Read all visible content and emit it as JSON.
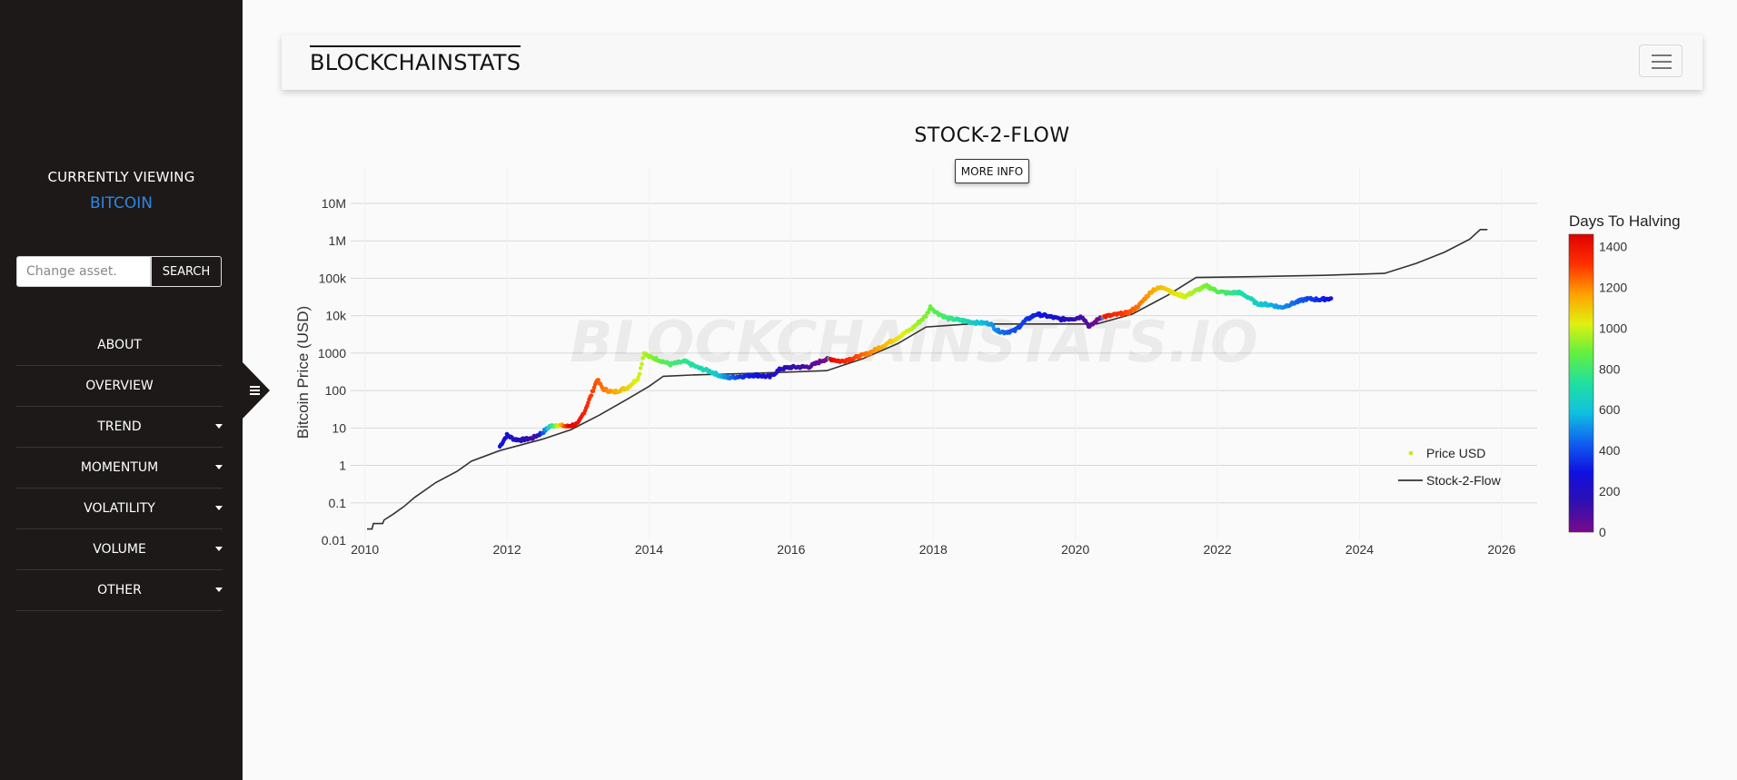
{
  "sidebar": {
    "currently_viewing_label": "CURRENTLY VIEWING",
    "asset": "BITCOIN",
    "search": {
      "placeholder": "Change asset.",
      "button_label": "SEARCH"
    },
    "nav": [
      {
        "label": "ABOUT",
        "dropdown": false
      },
      {
        "label": "OVERVIEW",
        "dropdown": false
      },
      {
        "label": "TREND",
        "dropdown": true
      },
      {
        "label": "MOMENTUM",
        "dropdown": true
      },
      {
        "label": "VOLATILITY",
        "dropdown": true
      },
      {
        "label": "VOLUME",
        "dropdown": true
      },
      {
        "label": "OTHER",
        "dropdown": true
      }
    ]
  },
  "header": {
    "brand": "BLOCKCHAINSTATS"
  },
  "page": {
    "title": "STOCK-2-FLOW",
    "more_info_label": "MORE INFO"
  },
  "chart_data": {
    "type": "scatter",
    "ylabel": "Bitcoin Price (USD)",
    "y_scale": "log",
    "ylim": [
      0.01,
      10000000
    ],
    "y_ticks": [
      {
        "value": 0.01,
        "label": "0.01"
      },
      {
        "value": 0.1,
        "label": "0.1"
      },
      {
        "value": 1,
        "label": "1"
      },
      {
        "value": 10,
        "label": "10"
      },
      {
        "value": 100,
        "label": "100"
      },
      {
        "value": 1000,
        "label": "1000"
      },
      {
        "value": 10000,
        "label": "10k"
      },
      {
        "value": 100000,
        "label": "100k"
      },
      {
        "value": 1000000,
        "label": "1M"
      },
      {
        "value": 10000000,
        "label": "10M"
      }
    ],
    "xlim": [
      2009.8,
      2026.5
    ],
    "x_ticks": [
      "2010",
      "2012",
      "2014",
      "2016",
      "2018",
      "2020",
      "2022",
      "2024",
      "2026"
    ],
    "grid": true,
    "watermark": "BLOCKCHAINSTATS.IO",
    "legend_position": "bottom-right",
    "series": [
      {
        "name": "Price USD",
        "kind": "markers",
        "legend_color": "#c8e82c",
        "points": [
          [
            2011.9,
            3.2
          ],
          [
            2012.0,
            6.5
          ],
          [
            2012.1,
            5.0
          ],
          [
            2012.2,
            4.8
          ],
          [
            2012.35,
            5.3
          ],
          [
            2012.5,
            7.5
          ],
          [
            2012.6,
            11
          ],
          [
            2012.7,
            12
          ],
          [
            2012.85,
            11
          ],
          [
            2013.0,
            13
          ],
          [
            2013.1,
            30
          ],
          [
            2013.2,
            90
          ],
          [
            2013.27,
            200
          ],
          [
            2013.35,
            110
          ],
          [
            2013.5,
            90
          ],
          [
            2013.7,
            120
          ],
          [
            2013.85,
            220
          ],
          [
            2013.93,
            1000
          ],
          [
            2014.0,
            800
          ],
          [
            2014.1,
            700
          ],
          [
            2014.3,
            500
          ],
          [
            2014.5,
            600
          ],
          [
            2014.7,
            400
          ],
          [
            2014.85,
            330
          ],
          [
            2015.0,
            250
          ],
          [
            2015.1,
            220
          ],
          [
            2015.3,
            240
          ],
          [
            2015.5,
            260
          ],
          [
            2015.7,
            230
          ],
          [
            2015.85,
            380
          ],
          [
            2016.0,
            420
          ],
          [
            2016.25,
            430
          ],
          [
            2016.45,
            650
          ],
          [
            2016.55,
            700
          ],
          [
            2016.7,
            600
          ],
          [
            2016.9,
            750
          ],
          [
            2017.1,
            1000
          ],
          [
            2017.3,
            1600
          ],
          [
            2017.5,
            2600
          ],
          [
            2017.7,
            4500
          ],
          [
            2017.9,
            10000
          ],
          [
            2017.96,
            17000
          ],
          [
            2018.05,
            12000
          ],
          [
            2018.2,
            8500
          ],
          [
            2018.4,
            7500
          ],
          [
            2018.6,
            6500
          ],
          [
            2018.8,
            6200
          ],
          [
            2018.9,
            4000
          ],
          [
            2019.0,
            3600
          ],
          [
            2019.15,
            4000
          ],
          [
            2019.3,
            7500
          ],
          [
            2019.45,
            11000
          ],
          [
            2019.6,
            9800
          ],
          [
            2019.8,
            8000
          ],
          [
            2020.0,
            8500
          ],
          [
            2020.1,
            9500
          ],
          [
            2020.2,
            5000
          ],
          [
            2020.35,
            9000
          ],
          [
            2020.55,
            10500
          ],
          [
            2020.75,
            12000
          ],
          [
            2020.9,
            19000
          ],
          [
            2021.0,
            32000
          ],
          [
            2021.1,
            50000
          ],
          [
            2021.25,
            58000
          ],
          [
            2021.4,
            38000
          ],
          [
            2021.55,
            33000
          ],
          [
            2021.7,
            47000
          ],
          [
            2021.85,
            62000
          ],
          [
            2022.0,
            45000
          ],
          [
            2022.15,
            40000
          ],
          [
            2022.3,
            42000
          ],
          [
            2022.45,
            30000
          ],
          [
            2022.55,
            21000
          ],
          [
            2022.75,
            19500
          ],
          [
            2022.9,
            16500
          ],
          [
            2023.05,
            21000
          ],
          [
            2023.25,
            28000
          ],
          [
            2023.45,
            27000
          ],
          [
            2023.6,
            29000
          ]
        ]
      },
      {
        "name": "Stock-2-Flow",
        "kind": "line",
        "color": "#333333",
        "points": [
          [
            2010.03,
            0.02
          ],
          [
            2010.1,
            0.02
          ],
          [
            2010.12,
            0.028
          ],
          [
            2010.25,
            0.028
          ],
          [
            2010.27,
            0.035
          ],
          [
            2010.4,
            0.05
          ],
          [
            2010.55,
            0.08
          ],
          [
            2010.7,
            0.14
          ],
          [
            2011.0,
            0.35
          ],
          [
            2011.3,
            0.7
          ],
          [
            2011.5,
            1.3
          ],
          [
            2011.9,
            2.5
          ],
          [
            2012.5,
            5
          ],
          [
            2012.9,
            9
          ],
          [
            2013.3,
            22
          ],
          [
            2013.7,
            60
          ],
          [
            2014.0,
            130
          ],
          [
            2014.2,
            240
          ],
          [
            2014.6,
            260
          ],
          [
            2015.5,
            290
          ],
          [
            2016.5,
            340
          ],
          [
            2017.0,
            700
          ],
          [
            2017.5,
            1800
          ],
          [
            2017.9,
            5000
          ],
          [
            2018.5,
            6000
          ],
          [
            2019.5,
            6000
          ],
          [
            2020.3,
            6000
          ],
          [
            2020.8,
            11000
          ],
          [
            2021.3,
            35000
          ],
          [
            2021.7,
            105000
          ],
          [
            2022.5,
            110000
          ],
          [
            2023.5,
            120000
          ],
          [
            2024.35,
            135000
          ],
          [
            2024.8,
            250000
          ],
          [
            2025.2,
            500000
          ],
          [
            2025.55,
            1100000
          ],
          [
            2025.7,
            2000000
          ],
          [
            2025.8,
            2000000
          ]
        ]
      }
    ],
    "colorbar": {
      "title": "Days To Halving",
      "min": 0,
      "max": 1460,
      "ticks": [
        "0",
        "200",
        "400",
        "600",
        "800",
        "1000",
        "1200",
        "1400"
      ],
      "colors": [
        "#7a0a8a",
        "#2f0fb0",
        "#1010e0",
        "#1060f0",
        "#10c0e0",
        "#20e0a0",
        "#60f040",
        "#e0f010",
        "#ffa000",
        "#ff3000",
        "#e00000"
      ]
    },
    "color_days": [
      [
        2011.9,
        300
      ],
      [
        2012.4,
        100
      ],
      [
        2012.88,
        1460
      ],
      [
        2013.3,
        1250
      ],
      [
        2014.2,
        850
      ],
      [
        2014.9,
        650
      ],
      [
        2015.3,
        350
      ],
      [
        2016.52,
        0
      ],
      [
        2016.55,
        1440
      ],
      [
        2017.5,
        1050
      ],
      [
        2018.2,
        800
      ],
      [
        2019.0,
        450
      ],
      [
        2019.7,
        250
      ],
      [
        2020.37,
        0
      ],
      [
        2020.4,
        1400
      ],
      [
        2021.25,
        1100
      ],
      [
        2022.0,
        850
      ],
      [
        2022.8,
        550
      ],
      [
        2023.6,
        280
      ]
    ]
  }
}
